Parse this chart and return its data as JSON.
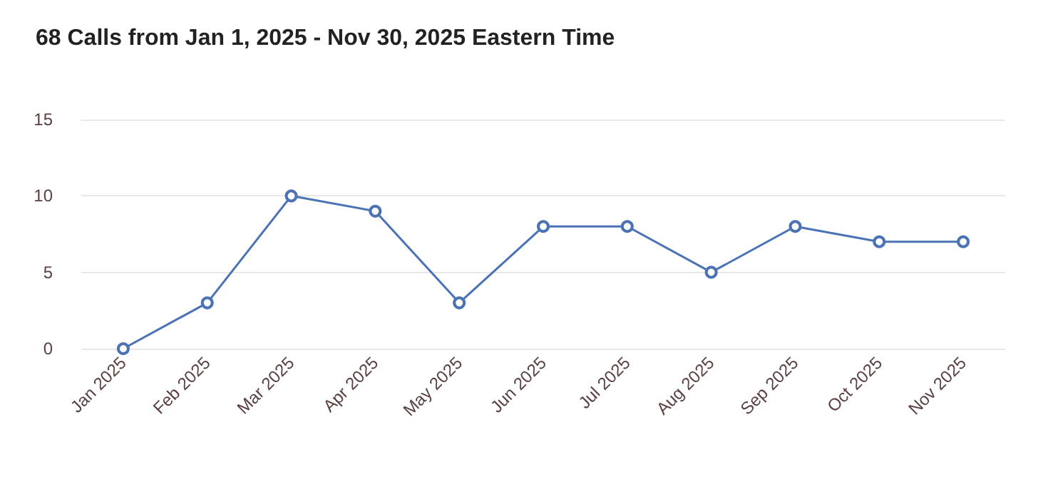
{
  "chart_data": {
    "type": "line",
    "title": "68 Calls from Jan 1, 2025 - Nov 30, 2025 Eastern Time",
    "categories": [
      "Jan 2025",
      "Feb 2025",
      "Mar 2025",
      "Apr 2025",
      "May 2025",
      "Jun 2025",
      "Jul 2025",
      "Aug 2025",
      "Sep 2025",
      "Oct 2025",
      "Nov 2025"
    ],
    "series": [
      {
        "color": "#4a72b5",
        "values": [
          0,
          3,
          10,
          9,
          3,
          8,
          8,
          5,
          8,
          7,
          7
        ]
      }
    ],
    "ylim": [
      0,
      15
    ],
    "yticks": [
      0,
      5,
      10,
      15
    ],
    "grid": "y",
    "marker": "circle",
    "line_style": "solid"
  }
}
